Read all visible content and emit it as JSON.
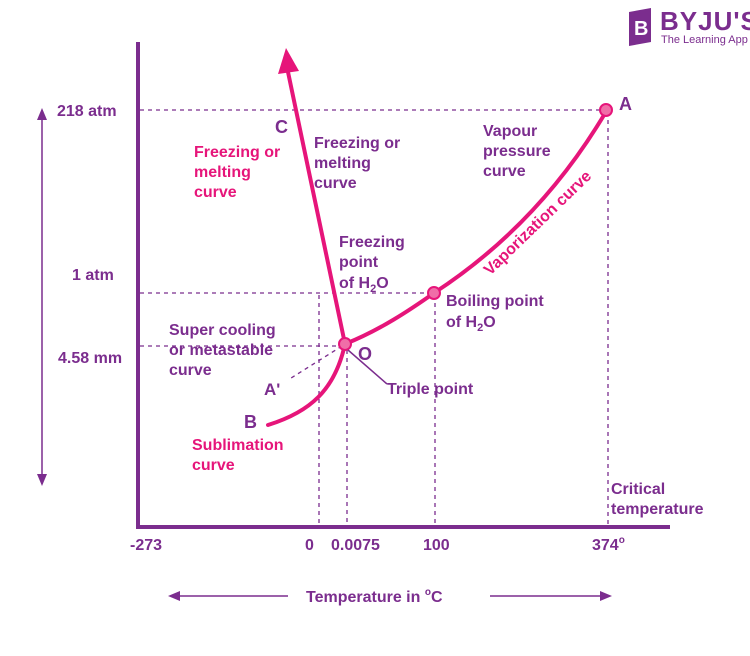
{
  "brand": {
    "name": "BYJU'S",
    "tagline": "The Learning App",
    "color": "#7b2d8e"
  },
  "colors": {
    "axis": "#7b2d8e",
    "curve": "#e6157a",
    "guide": "#7b2d8e"
  },
  "y_ticks": {
    "p218": "218 atm",
    "p1": "1 atm",
    "p458": "4.58 mm"
  },
  "x_ticks": {
    "t273": "-273",
    "t0": "0",
    "t00075": "0.0075",
    "t100": "100",
    "t374": "374",
    "t374_sup": "o"
  },
  "x_axis_title": {
    "text": "Temperature in ",
    "sup": "o",
    "unit": "C"
  },
  "points": {
    "A": "A",
    "B": "B",
    "C": "C",
    "O": "O",
    "A_prime": "A'"
  },
  "labels": {
    "freezing_pink": [
      "Freezing or",
      "melting",
      "curve"
    ],
    "freezing_purple": [
      "Freezing or",
      "melting",
      "curve"
    ],
    "vapour": [
      "Vapour",
      "pressure",
      "curve"
    ],
    "vaporization": "Vaporization curve",
    "freezing_point": {
      "line1": "Freezing",
      "line2": "point",
      "line3_pre": "of H",
      "sub": "2",
      "line3_post": "O"
    },
    "boiling_point": {
      "line1": "Boiling point",
      "line2_pre": "of H",
      "sub": "2",
      "line2_post": "O"
    },
    "super_cooling": [
      "Super cooling",
      "or metastable",
      "curve"
    ],
    "triple_point": "Triple point",
    "sublimation": [
      "Sublimation",
      "curve"
    ],
    "critical": [
      "Critical",
      "temperature"
    ]
  }
}
